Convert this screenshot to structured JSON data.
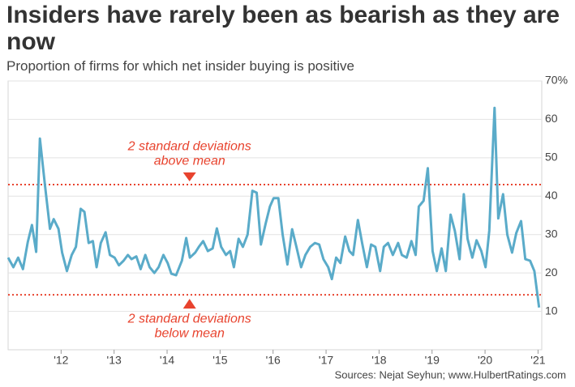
{
  "chart_data": {
    "type": "line",
    "title": "Insiders have rarely been as bearish as they are now",
    "subtitle": "Proportion of firms for which net insider buying is positive",
    "source": "Sources: Nejat Seyhun; www.HulbertRatings.com",
    "color": "#5aabc9",
    "x": [
      2011.0,
      2011.1,
      2011.19,
      2011.28,
      2011.37,
      2011.45,
      2011.53,
      2011.6,
      2011.69,
      2011.79,
      2011.86,
      2011.95,
      2012.02,
      2012.11,
      2012.2,
      2012.28,
      2012.37,
      2012.44,
      2012.52,
      2012.6,
      2012.67,
      2012.75,
      2012.84,
      2012.92,
      2013.01,
      2013.09,
      2013.18,
      2013.26,
      2013.33,
      2013.42,
      2013.5,
      2013.59,
      2013.67,
      2013.76,
      2013.84,
      2013.93,
      2014.01,
      2014.08,
      2014.17,
      2014.28,
      2014.36,
      2014.43,
      2014.53,
      2014.6,
      2014.68,
      2014.77,
      2014.86,
      2014.94,
      2015.02,
      2015.11,
      2015.19,
      2015.26,
      2015.35,
      2015.43,
      2015.52,
      2015.61,
      2015.69,
      2015.77,
      2015.86,
      2015.94,
      2016.01,
      2016.1,
      2016.18,
      2016.27,
      2016.36,
      2016.44,
      2016.53,
      2016.61,
      2016.7,
      2016.79,
      2016.87,
      2016.95,
      2017.04,
      2017.11,
      2017.19,
      2017.27,
      2017.36,
      2017.44,
      2017.51,
      2017.6,
      2017.68,
      2017.77,
      2017.85,
      2017.93,
      2018.02,
      2018.09,
      2018.17,
      2018.26,
      2018.36,
      2018.43,
      2018.52,
      2018.61,
      2018.69,
      2018.75,
      2018.84,
      2018.92,
      2019.01,
      2019.09,
      2019.18,
      2019.26,
      2019.35,
      2019.43,
      2019.52,
      2019.6,
      2019.67,
      2019.76,
      2019.84,
      2019.93,
      2020.01,
      2020.08,
      2020.18,
      2020.25,
      2020.34,
      2020.42,
      2020.51,
      2020.59,
      2020.68,
      2020.76,
      2020.85,
      2020.93,
      2021.02
    ],
    "values": [
      24,
      21.5,
      24,
      21,
      28,
      32.5,
      25.5,
      55,
      43.5,
      31.5,
      34,
      31.5,
      25.3,
      20.5,
      24.7,
      26.8,
      36.7,
      35.9,
      27.8,
      28.3,
      21.5,
      27.8,
      30.6,
      24.7,
      24,
      22,
      23.2,
      24.7,
      23.6,
      24.3,
      21,
      24.7,
      21.5,
      20,
      21.5,
      24.7,
      22.6,
      19.8,
      19.4,
      23.2,
      29.1,
      24,
      25.3,
      26.8,
      28.3,
      25.7,
      26.4,
      31.6,
      26.8,
      24.7,
      25.7,
      21.5,
      28.9,
      26.8,
      30,
      41.4,
      40.9,
      27.4,
      32.9,
      37.3,
      39.5,
      39.5,
      30,
      22.2,
      31.4,
      26.8,
      21.5,
      24.7,
      26.8,
      27.8,
      27.4,
      23.6,
      21.5,
      18.4,
      24,
      22.6,
      29.5,
      25.7,
      24.7,
      33.8,
      27.8,
      21.5,
      27.4,
      26.8,
      20.5,
      26.8,
      27.8,
      24.7,
      27.8,
      24.7,
      24,
      28.3,
      24.7,
      37.3,
      38.8,
      47.3,
      25.7,
      20.5,
      26.4,
      20.5,
      35.2,
      31,
      23.6,
      40.5,
      28.9,
      24,
      28.5,
      25.7,
      21.5,
      31,
      63,
      34.2,
      40.5,
      30,
      25.3,
      30.4,
      33.5,
      23.6,
      23.2,
      20.5,
      11
    ],
    "xlim": [
      2011,
      2021.07
    ],
    "xticks": [
      {
        "value": 2012,
        "label": "'12"
      },
      {
        "value": 2013,
        "label": "'13"
      },
      {
        "value": 2014,
        "label": "'14"
      },
      {
        "value": 2015,
        "label": "'15"
      },
      {
        "value": 2016,
        "label": "'16"
      },
      {
        "value": 2017,
        "label": "'17"
      },
      {
        "value": 2018,
        "label": "'18"
      },
      {
        "value": 2019,
        "label": "'19"
      },
      {
        "value": 2020,
        "label": "'20"
      },
      {
        "value": 2021,
        "label": "'21"
      }
    ],
    "ylim": [
      0,
      70
    ],
    "yticks": [
      10,
      20,
      30,
      40,
      50,
      60,
      {
        "value": 70,
        "label": "70%"
      }
    ],
    "grid": true,
    "reference_lines": [
      {
        "value": 43,
        "color": "#e8432e",
        "label_lines": [
          "2 standard deviations",
          "above mean"
        ]
      },
      {
        "value": 14.3,
        "color": "#e8432e",
        "label_lines": [
          "2 standard deviations",
          "below mean"
        ]
      }
    ]
  }
}
